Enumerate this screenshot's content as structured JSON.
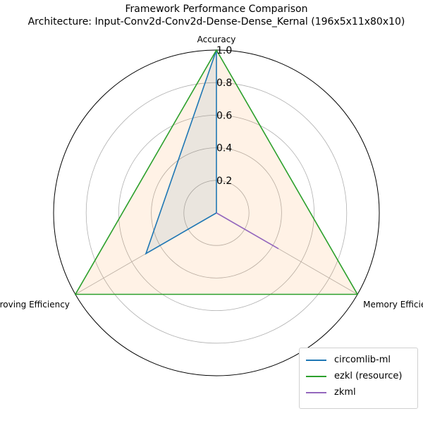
{
  "chart_data": {
    "type": "radar",
    "title": "Framework Performance Comparison",
    "subtitle": "Architecture: Input-Conv2d-Conv2d-Dense-Dense_Kernal (196x5x11x80x10)",
    "axes": [
      "Accuracy",
      "Memory Efficiency",
      "Proving Efficiency"
    ],
    "rlim": [
      0,
      1.0
    ],
    "rticks": [
      "0.2",
      "0.4",
      "0.6",
      "0.8",
      "1.0"
    ],
    "grid": true,
    "legend_position": "lower-right",
    "series": [
      {
        "name": "circomlib-ml",
        "color": "#1f77b4",
        "fill": "#1f77b4",
        "values": [
          1.0,
          0.0,
          0.5
        ]
      },
      {
        "name": "ezkl (resource)",
        "color": "#2ca02c",
        "fill": "#ff7f0e",
        "values": [
          1.0,
          1.0,
          1.0
        ]
      },
      {
        "name": "zkml",
        "color": "#9467bd",
        "fill": null,
        "values": [
          0.0,
          0.44,
          0.0
        ]
      }
    ]
  }
}
